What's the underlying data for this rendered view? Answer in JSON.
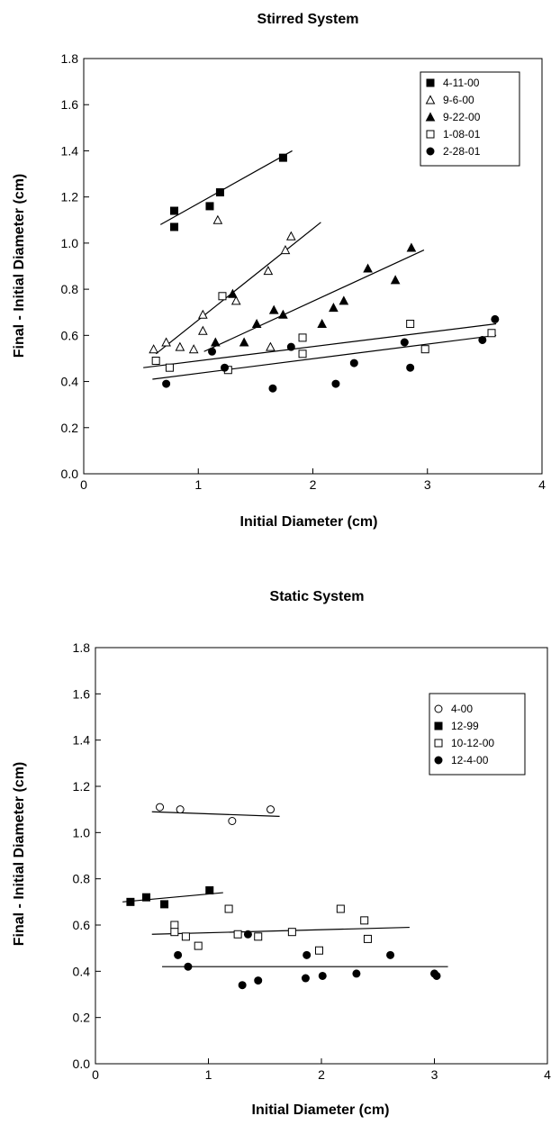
{
  "chart_data": [
    {
      "type": "scatter",
      "title": "Stirred System",
      "xlabel": "Initial Diameter (cm)",
      "ylabel": "Final - Initial Diameter (cm)",
      "xlim": [
        0,
        4
      ],
      "ylim": [
        0,
        1.8
      ],
      "xticks": [
        "0",
        "1",
        "2",
        "3",
        "4"
      ],
      "yticks": [
        "0.0",
        "0.2",
        "0.4",
        "0.6",
        "0.8",
        "1.0",
        "1.2",
        "1.4",
        "1.6",
        "1.8"
      ],
      "grid": false,
      "legend_position": "top-right",
      "series": [
        {
          "name": "4-11-00",
          "marker": "square-filled",
          "x": [
            0.79,
            0.79,
            1.1,
            1.19,
            1.74
          ],
          "y": [
            1.14,
            1.07,
            1.16,
            1.22,
            1.37
          ],
          "trend": [
            [
              0.67,
              1.08
            ],
            [
              1.82,
              1.4
            ]
          ]
        },
        {
          "name": "9-6-00",
          "marker": "triangle-open",
          "x": [
            0.61,
            0.72,
            0.84,
            0.96,
            1.04,
            1.04,
            1.17,
            1.33,
            1.61,
            1.63,
            1.76,
            1.81
          ],
          "y": [
            0.54,
            0.57,
            0.55,
            0.54,
            0.69,
            0.62,
            1.1,
            0.75,
            0.88,
            0.55,
            0.97,
            1.03
          ],
          "trend": [
            [
              0.63,
              0.52
            ],
            [
              2.07,
              1.09
            ]
          ]
        },
        {
          "name": "9-22-00",
          "marker": "triangle-filled",
          "x": [
            1.15,
            1.3,
            1.4,
            1.51,
            1.66,
            1.74,
            2.08,
            2.18,
            2.27,
            2.48,
            2.72,
            2.86
          ],
          "y": [
            0.57,
            0.78,
            0.57,
            0.65,
            0.71,
            0.69,
            0.65,
            0.72,
            0.75,
            0.89,
            0.84,
            0.98
          ],
          "trend": [
            [
              1.05,
              0.53
            ],
            [
              2.97,
              0.97
            ]
          ]
        },
        {
          "name": "1-08-01",
          "marker": "square-open",
          "x": [
            0.63,
            0.75,
            1.21,
            1.26,
            1.91,
            1.91,
            2.85,
            2.98,
            3.56
          ],
          "y": [
            0.49,
            0.46,
            0.77,
            0.45,
            0.59,
            0.52,
            0.65,
            0.54,
            0.61
          ],
          "trend": [
            [
              0.52,
              0.46
            ],
            [
              3.6,
              0.65
            ]
          ]
        },
        {
          "name": "2-28-01",
          "marker": "circle-filled",
          "x": [
            0.72,
            1.12,
            1.23,
            1.65,
            1.81,
            2.2,
            2.36,
            2.8,
            2.85,
            3.48,
            3.59
          ],
          "y": [
            0.39,
            0.53,
            0.46,
            0.37,
            0.55,
            0.39,
            0.48,
            0.57,
            0.46,
            0.58,
            0.67
          ],
          "trend": [
            [
              0.6,
              0.41
            ],
            [
              3.6,
              0.6
            ]
          ]
        }
      ]
    },
    {
      "type": "scatter",
      "title": "Static System",
      "xlabel": "Initial Diameter (cm)",
      "ylabel": "Final - Initial Diameter (cm)",
      "xlim": [
        0,
        4
      ],
      "ylim": [
        0,
        1.8
      ],
      "xticks": [
        "0",
        "1",
        "2",
        "3",
        "4"
      ],
      "yticks": [
        "0.0",
        "0.2",
        "0.4",
        "0.6",
        "0.8",
        "1.0",
        "1.2",
        "1.4",
        "1.6",
        "1.8"
      ],
      "grid": false,
      "legend_position": "top-right",
      "series": [
        {
          "name": "4-00",
          "marker": "circle-open",
          "x": [
            0.57,
            0.75,
            1.21,
            1.55
          ],
          "y": [
            1.11,
            1.1,
            1.05,
            1.1
          ],
          "trend": [
            [
              0.5,
              1.09
            ],
            [
              1.63,
              1.07
            ]
          ]
        },
        {
          "name": "12-99",
          "marker": "square-filled",
          "x": [
            0.31,
            0.45,
            0.61,
            1.01
          ],
          "y": [
            0.7,
            0.72,
            0.69,
            0.75
          ],
          "trend": [
            [
              0.24,
              0.7
            ],
            [
              1.13,
              0.74
            ]
          ]
        },
        {
          "name": "10-12-00",
          "marker": "square-open",
          "x": [
            0.7,
            0.7,
            0.8,
            0.91,
            1.18,
            1.26,
            1.44,
            1.74,
            1.98,
            2.17,
            2.38,
            2.41
          ],
          "y": [
            0.6,
            0.57,
            0.55,
            0.51,
            0.67,
            0.56,
            0.55,
            0.57,
            0.49,
            0.67,
            0.62,
            0.54
          ],
          "trend": [
            [
              0.5,
              0.56
            ],
            [
              2.78,
              0.59
            ]
          ]
        },
        {
          "name": "12-4-00",
          "marker": "circle-filled",
          "x": [
            0.73,
            0.82,
            1.3,
            1.35,
            1.44,
            1.86,
            1.87,
            2.01,
            2.31,
            2.61,
            3.0,
            3.02
          ],
          "y": [
            0.47,
            0.42,
            0.34,
            0.56,
            0.36,
            0.37,
            0.47,
            0.38,
            0.39,
            0.47,
            0.39,
            0.38
          ],
          "trend": [
            [
              0.59,
              0.42
            ],
            [
              3.12,
              0.42
            ]
          ]
        }
      ]
    }
  ]
}
